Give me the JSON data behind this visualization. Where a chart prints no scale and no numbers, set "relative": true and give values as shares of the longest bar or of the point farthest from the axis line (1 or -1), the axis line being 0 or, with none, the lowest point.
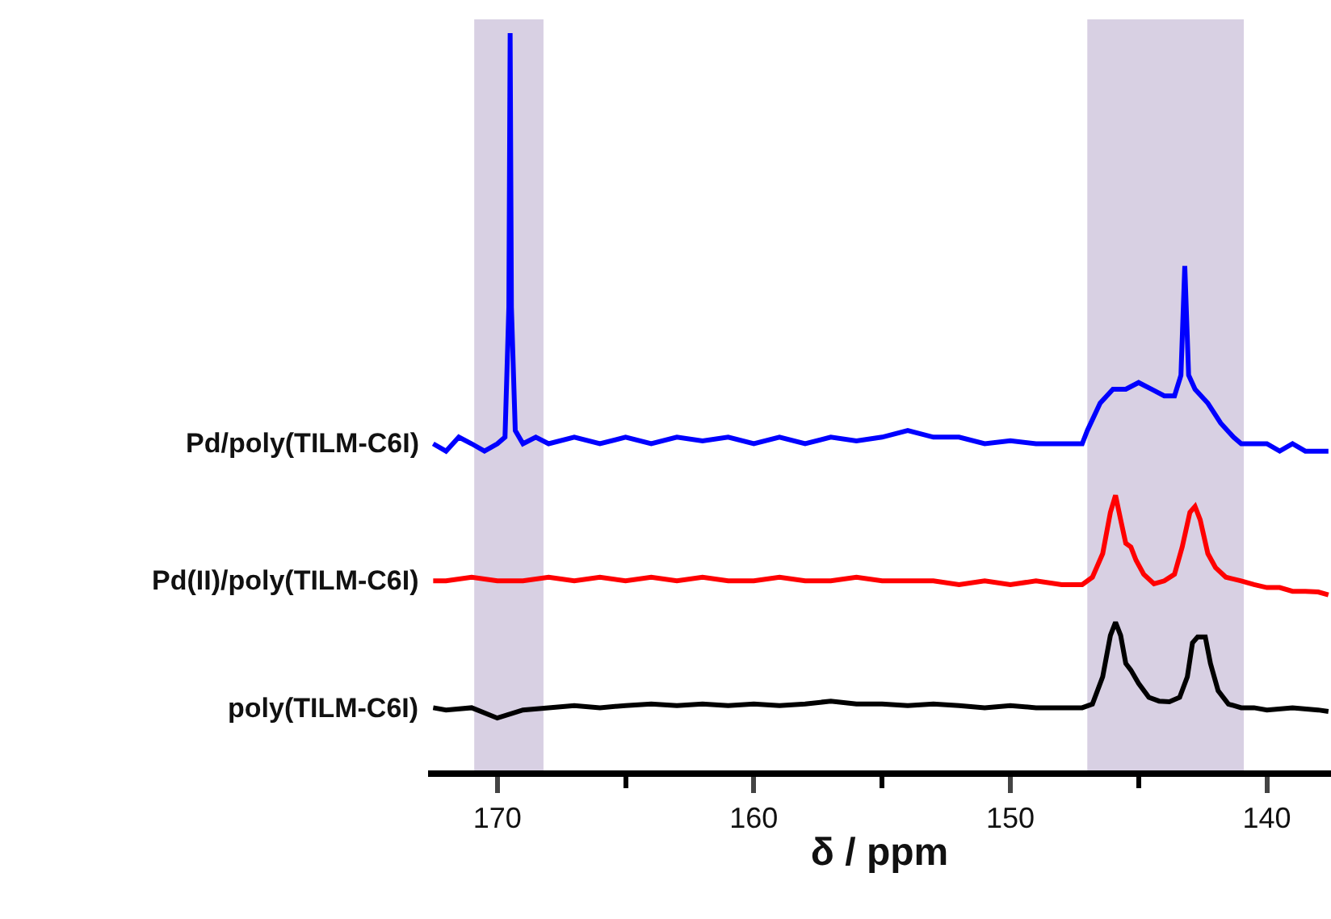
{
  "chart_data": {
    "type": "line",
    "relative": true,
    "xlabel": "δ / ppm",
    "xlim": [
      172.7,
      137.5
    ],
    "xticks": [
      170,
      {
        "value": 165,
        "label": null
      },
      160,
      {
        "value": 155,
        "label": null
      },
      150,
      {
        "value": 145,
        "label": null
      },
      140
    ],
    "tick_labels": "x",
    "grid": false,
    "legend": false,
    "marker": "none",
    "line_style": "solid",
    "bands": [
      {
        "axis": "x",
        "from": 170.9,
        "to": 168.2,
        "color": "#d8d0e3"
      },
      {
        "axis": "x",
        "from": 147.0,
        "to": 140.9,
        "color": "#d8d0e3"
      }
    ],
    "series": [
      {
        "name": "Pd/poly(TILM-C6I)",
        "color": "#0000ff",
        "x": [
          172.5,
          172.0,
          171.5,
          171.0,
          170.5,
          170.0,
          169.7,
          169.55,
          169.5,
          169.45,
          169.3,
          169.0,
          168.5,
          168.0,
          167.0,
          166.0,
          165.0,
          164.0,
          163.0,
          162.0,
          161.0,
          160.0,
          159.0,
          158.0,
          157.0,
          156.0,
          155.0,
          154.0,
          153.0,
          152.0,
          151.0,
          150.0,
          149.0,
          148.0,
          147.2,
          147.0,
          146.5,
          146.0,
          145.5,
          145.0,
          144.5,
          144.0,
          143.6,
          143.35,
          143.2,
          143.05,
          142.8,
          142.3,
          141.8,
          141.3,
          141.0,
          140.5,
          140.0,
          139.5,
          139.0,
          138.5,
          138.0,
          137.6
        ],
        "values": [
          0.443,
          0.433,
          0.452,
          0.443,
          0.433,
          0.443,
          0.452,
          0.628,
          1.0,
          0.628,
          0.461,
          0.443,
          0.452,
          0.443,
          0.452,
          0.443,
          0.452,
          0.443,
          0.452,
          0.447,
          0.452,
          0.443,
          0.452,
          0.443,
          0.452,
          0.447,
          0.452,
          0.461,
          0.452,
          0.452,
          0.443,
          0.447,
          0.443,
          0.443,
          0.443,
          0.461,
          0.498,
          0.517,
          0.517,
          0.526,
          0.517,
          0.508,
          0.508,
          0.536,
          0.684,
          0.536,
          0.517,
          0.498,
          0.471,
          0.452,
          0.443,
          0.443,
          0.443,
          0.433,
          0.443,
          0.433,
          0.433,
          0.433
        ]
      },
      {
        "name": "Pd(II)/poly(TILM-C6I)",
        "color": "#ff0000",
        "x": [
          172.5,
          172.0,
          171.0,
          170.0,
          169.0,
          168.0,
          167.0,
          166.0,
          165.0,
          164.0,
          163.0,
          162.0,
          161.0,
          160.0,
          159.0,
          158.0,
          157.0,
          156.0,
          155.0,
          154.0,
          153.0,
          152.0,
          151.0,
          150.0,
          149.0,
          148.0,
          147.2,
          146.8,
          146.4,
          146.1,
          145.9,
          145.7,
          145.5,
          145.3,
          145.1,
          144.8,
          144.4,
          144.0,
          143.6,
          143.3,
          143.0,
          142.8,
          142.6,
          142.3,
          142.0,
          141.6,
          141.0,
          140.5,
          140.0,
          139.5,
          139.0,
          138.5,
          138.0,
          137.6
        ],
        "values": [
          0.257,
          0.257,
          0.262,
          0.257,
          0.257,
          0.262,
          0.257,
          0.262,
          0.257,
          0.262,
          0.257,
          0.262,
          0.257,
          0.257,
          0.262,
          0.257,
          0.257,
          0.262,
          0.257,
          0.257,
          0.257,
          0.252,
          0.257,
          0.252,
          0.257,
          0.252,
          0.252,
          0.262,
          0.294,
          0.35,
          0.373,
          0.34,
          0.308,
          0.303,
          0.285,
          0.266,
          0.253,
          0.257,
          0.266,
          0.303,
          0.35,
          0.358,
          0.34,
          0.294,
          0.275,
          0.262,
          0.257,
          0.252,
          0.248,
          0.248,
          0.243,
          0.243,
          0.242,
          0.238
        ]
      },
      {
        "name": "poly(TILM-C6I)",
        "color": "#000000",
        "x": [
          172.5,
          172.0,
          171.0,
          170.0,
          169.0,
          168.0,
          167.0,
          166.0,
          165.0,
          164.0,
          163.0,
          162.0,
          161.0,
          160.0,
          159.0,
          158.0,
          157.0,
          156.0,
          155.0,
          154.0,
          153.0,
          152.0,
          151.0,
          150.0,
          149.0,
          148.0,
          147.2,
          146.8,
          146.4,
          146.1,
          145.9,
          145.7,
          145.5,
          145.3,
          145.0,
          144.6,
          144.2,
          143.8,
          143.4,
          143.1,
          142.9,
          142.7,
          142.4,
          142.2,
          141.9,
          141.5,
          141.0,
          140.5,
          140.0,
          139.0,
          138.0,
          137.6
        ],
        "values": [
          0.085,
          0.082,
          0.085,
          0.071,
          0.082,
          0.085,
          0.088,
          0.085,
          0.088,
          0.09,
          0.088,
          0.09,
          0.088,
          0.09,
          0.088,
          0.09,
          0.094,
          0.09,
          0.09,
          0.088,
          0.09,
          0.088,
          0.085,
          0.088,
          0.085,
          0.085,
          0.085,
          0.09,
          0.127,
          0.183,
          0.201,
          0.183,
          0.145,
          0.136,
          0.118,
          0.099,
          0.094,
          0.093,
          0.099,
          0.127,
          0.173,
          0.181,
          0.181,
          0.145,
          0.108,
          0.09,
          0.085,
          0.085,
          0.082,
          0.085,
          0.082,
          0.08
        ]
      }
    ]
  }
}
